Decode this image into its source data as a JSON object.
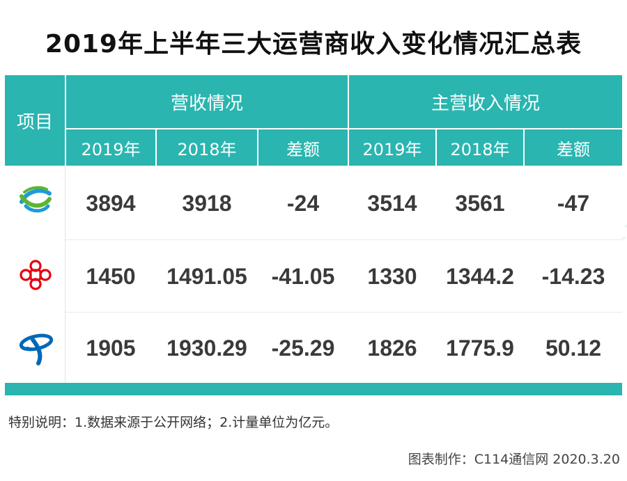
{
  "title": "2019年上半年三大运营商收入变化情况汇总表",
  "headers": {
    "item": "项目",
    "group1": "营收情况",
    "group2": "主营收入情况",
    "sub": [
      "2019年",
      "2018年",
      "差额",
      "2019年",
      "2018年",
      "差额"
    ]
  },
  "rows": [
    {
      "logo_icon": "china-mobile-logo-icon",
      "logo_color": "#1e9bd7",
      "values": [
        "3894",
        "3918",
        "-24",
        "3514",
        "3561",
        "-47"
      ]
    },
    {
      "logo_icon": "china-unicom-logo-icon",
      "logo_color": "#e60012",
      "values": [
        "1450",
        "1491.05",
        "-41.05",
        "1330",
        "1344.2",
        "-14.23"
      ]
    },
    {
      "logo_icon": "china-telecom-logo-icon",
      "logo_color": "#0068b7",
      "values": [
        "1905",
        "1930.29",
        "-25.29",
        "1826",
        "1775.9",
        "50.12"
      ]
    }
  ],
  "note": "特别说明：1.数据来源于公开网络；2.计量单位为亿元。",
  "credit": "图表制作：C114通信网  2020.3.20",
  "watermark": "C114",
  "colors": {
    "header": "#2ab5b0"
  }
}
